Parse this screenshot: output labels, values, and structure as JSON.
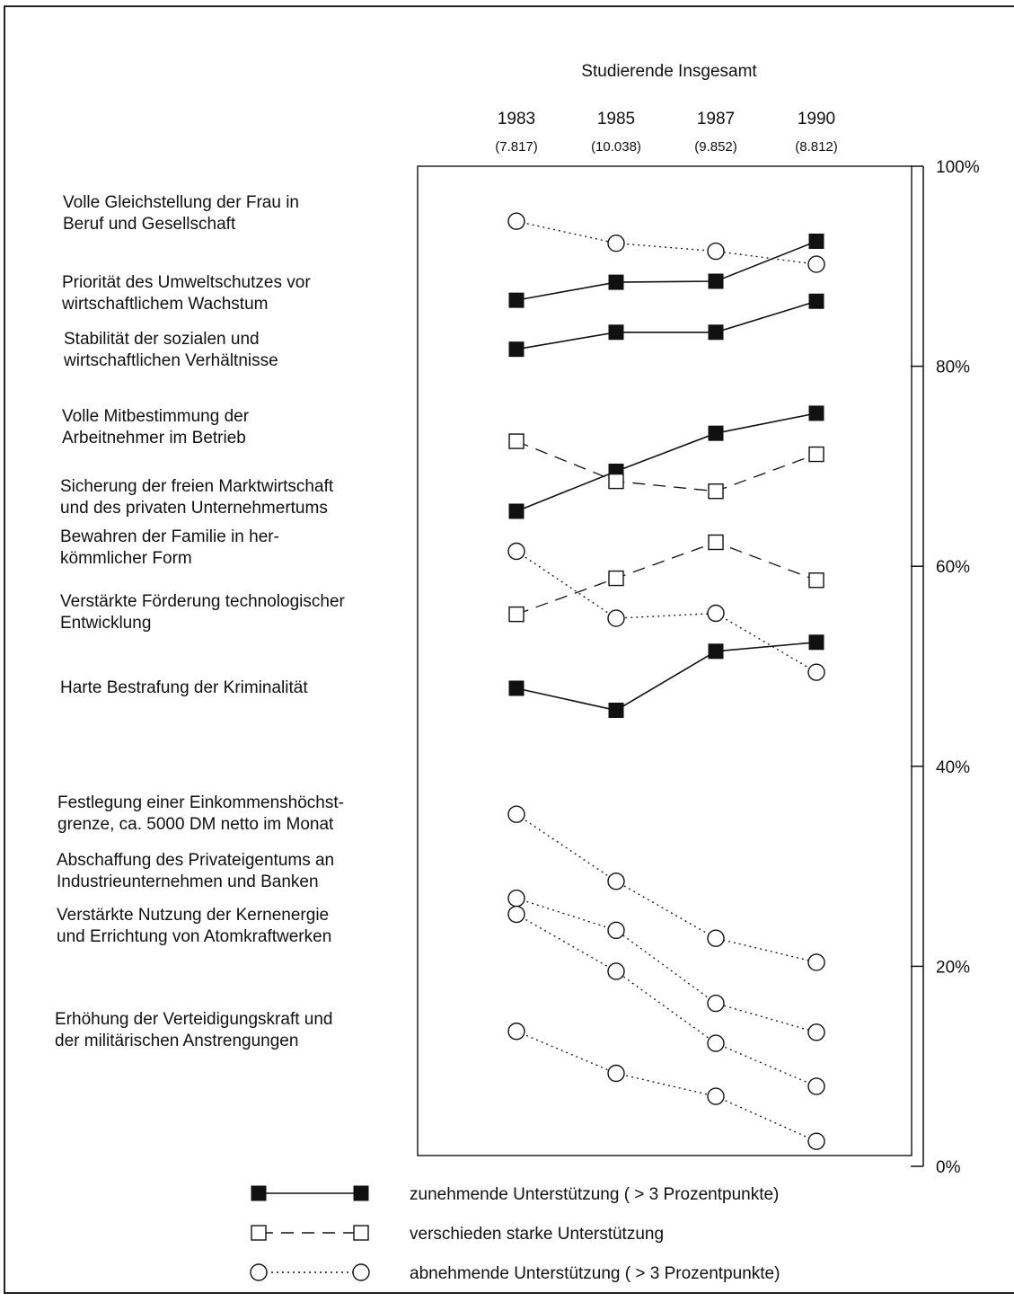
{
  "chart_data": {
    "type": "line",
    "title": "Studierende Insgesamt",
    "x": [
      "1983",
      "1985",
      "1987",
      "1990"
    ],
    "x_sublabels": [
      "(7.817)",
      "(10.038)",
      "(9.852)",
      "(8.812)"
    ],
    "ylim": [
      0,
      100
    ],
    "y_ticks": [
      "0%",
      "20%",
      "40%",
      "60%",
      "80%",
      "100%"
    ],
    "grid": false,
    "legend_position": "bottom",
    "legend": [
      {
        "style": "increasing",
        "marker": "filled-square",
        "line": "solid",
        "text": "zunehmende Unterstützung ( > 3 Prozentpunkte)"
      },
      {
        "style": "varying",
        "marker": "open-square",
        "line": "dashed",
        "text": "verschieden starke Unterstützung"
      },
      {
        "style": "decreasing",
        "marker": "open-circle",
        "line": "dotted",
        "text": "abnehmende Unterstützung ( > 3 Prozentpunkte)"
      }
    ],
    "series": [
      {
        "style": "decreasing",
        "values": [
          94.5,
          92.3,
          91.5,
          90.2
        ]
      },
      {
        "style": "increasing",
        "values": [
          86.6,
          88.4,
          88.5,
          92.5
        ]
      },
      {
        "style": "increasing",
        "values": [
          81.7,
          83.4,
          83.4,
          86.5
        ]
      },
      {
        "style": "increasing",
        "values": [
          65.5,
          69.5,
          73.3,
          75.3
        ]
      },
      {
        "style": "varying",
        "values": [
          72.5,
          68.5,
          67.5,
          71.2
        ]
      },
      {
        "style": "decreasing",
        "values": [
          61.5,
          54.8,
          55.3,
          49.4
        ]
      },
      {
        "style": "varying",
        "values": [
          55.2,
          58.8,
          62.4,
          58.6
        ]
      },
      {
        "style": "increasing",
        "values": [
          47.8,
          45.6,
          51.5,
          52.4
        ]
      },
      {
        "style": "decreasing",
        "values": [
          35.2,
          28.5,
          22.8,
          20.4
        ]
      },
      {
        "style": "decreasing",
        "values": [
          26.8,
          23.6,
          16.3,
          13.4
        ]
      },
      {
        "style": "decreasing",
        "values": [
          25.2,
          19.5,
          12.3,
          8.0
        ]
      },
      {
        "style": "decreasing",
        "values": [
          13.5,
          9.3,
          7.0,
          2.5
        ]
      }
    ],
    "item_labels": [
      [
        "Volle Gleichstellung der Frau in",
        "Beruf und Gesellschaft"
      ],
      [
        "Priorität des Umweltschutzes vor",
        "wirtschaftlichem Wachstum"
      ],
      [
        "Stabilität der sozialen und",
        "wirtschaftlichen Verhältnisse"
      ],
      [
        "Volle Mitbestimmung der",
        "Arbeitnehmer im Betrieb"
      ],
      [
        "Sicherung der freien Marktwirtschaft",
        "und des privaten Unternehmertums"
      ],
      [
        "Bewahren der Familie in her-",
        "kömmlicher Form"
      ],
      [
        "Verstärkte Förderung technologischer",
        "Entwicklung"
      ],
      [
        "Harte Bestrafung der Kriminalität"
      ],
      [
        "Festlegung einer Einkommenshöchst-",
        "grenze, ca. 5000 DM netto im Monat"
      ],
      [
        "Abschaffung des Privateigentums an",
        "Industrieunternehmen und Banken"
      ],
      [
        "Verstärkte Nutzung der Kernenergie",
        "und Errichtung von Atomkraftwerken"
      ],
      [
        "Erhöhung der Verteidigungskraft und",
        "der militärischen Anstrengungen"
      ]
    ],
    "colors": {
      "ink": "#111111",
      "background": "#ffffff"
    }
  }
}
